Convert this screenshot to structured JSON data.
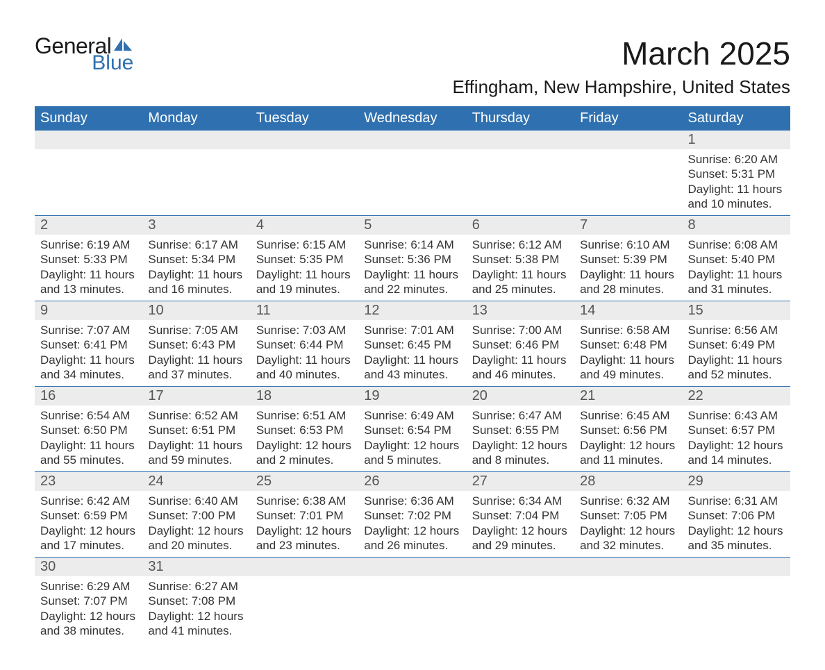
{
  "logo": {
    "general": "General",
    "blue": "Blue",
    "sail_color": "#2f71b0"
  },
  "title": "March 2025",
  "location": "Effingham, New Hampshire, United States",
  "colors": {
    "header_bg": "#2f71b0",
    "header_text": "#ffffff",
    "daynum_bg": "#ececec",
    "row_border": "#2f71b0",
    "text": "#333333"
  },
  "days_of_week": [
    "Sunday",
    "Monday",
    "Tuesday",
    "Wednesday",
    "Thursday",
    "Friday",
    "Saturday"
  ],
  "labels": {
    "sunrise": "Sunrise:",
    "sunset": "Sunset:",
    "daylight": "Daylight:"
  },
  "weeks": [
    [
      null,
      null,
      null,
      null,
      null,
      null,
      {
        "n": "1",
        "sunrise": "6:20 AM",
        "sunset": "5:31 PM",
        "daylight": "11 hours and 10 minutes."
      }
    ],
    [
      {
        "n": "2",
        "sunrise": "6:19 AM",
        "sunset": "5:33 PM",
        "daylight": "11 hours and 13 minutes."
      },
      {
        "n": "3",
        "sunrise": "6:17 AM",
        "sunset": "5:34 PM",
        "daylight": "11 hours and 16 minutes."
      },
      {
        "n": "4",
        "sunrise": "6:15 AM",
        "sunset": "5:35 PM",
        "daylight": "11 hours and 19 minutes."
      },
      {
        "n": "5",
        "sunrise": "6:14 AM",
        "sunset": "5:36 PM",
        "daylight": "11 hours and 22 minutes."
      },
      {
        "n": "6",
        "sunrise": "6:12 AM",
        "sunset": "5:38 PM",
        "daylight": "11 hours and 25 minutes."
      },
      {
        "n": "7",
        "sunrise": "6:10 AM",
        "sunset": "5:39 PM",
        "daylight": "11 hours and 28 minutes."
      },
      {
        "n": "8",
        "sunrise": "6:08 AM",
        "sunset": "5:40 PM",
        "daylight": "11 hours and 31 minutes."
      }
    ],
    [
      {
        "n": "9",
        "sunrise": "7:07 AM",
        "sunset": "6:41 PM",
        "daylight": "11 hours and 34 minutes."
      },
      {
        "n": "10",
        "sunrise": "7:05 AM",
        "sunset": "6:43 PM",
        "daylight": "11 hours and 37 minutes."
      },
      {
        "n": "11",
        "sunrise": "7:03 AM",
        "sunset": "6:44 PM",
        "daylight": "11 hours and 40 minutes."
      },
      {
        "n": "12",
        "sunrise": "7:01 AM",
        "sunset": "6:45 PM",
        "daylight": "11 hours and 43 minutes."
      },
      {
        "n": "13",
        "sunrise": "7:00 AM",
        "sunset": "6:46 PM",
        "daylight": "11 hours and 46 minutes."
      },
      {
        "n": "14",
        "sunrise": "6:58 AM",
        "sunset": "6:48 PM",
        "daylight": "11 hours and 49 minutes."
      },
      {
        "n": "15",
        "sunrise": "6:56 AM",
        "sunset": "6:49 PM",
        "daylight": "11 hours and 52 minutes."
      }
    ],
    [
      {
        "n": "16",
        "sunrise": "6:54 AM",
        "sunset": "6:50 PM",
        "daylight": "11 hours and 55 minutes."
      },
      {
        "n": "17",
        "sunrise": "6:52 AM",
        "sunset": "6:51 PM",
        "daylight": "11 hours and 59 minutes."
      },
      {
        "n": "18",
        "sunrise": "6:51 AM",
        "sunset": "6:53 PM",
        "daylight": "12 hours and 2 minutes."
      },
      {
        "n": "19",
        "sunrise": "6:49 AM",
        "sunset": "6:54 PM",
        "daylight": "12 hours and 5 minutes."
      },
      {
        "n": "20",
        "sunrise": "6:47 AM",
        "sunset": "6:55 PM",
        "daylight": "12 hours and 8 minutes."
      },
      {
        "n": "21",
        "sunrise": "6:45 AM",
        "sunset": "6:56 PM",
        "daylight": "12 hours and 11 minutes."
      },
      {
        "n": "22",
        "sunrise": "6:43 AM",
        "sunset": "6:57 PM",
        "daylight": "12 hours and 14 minutes."
      }
    ],
    [
      {
        "n": "23",
        "sunrise": "6:42 AM",
        "sunset": "6:59 PM",
        "daylight": "12 hours and 17 minutes."
      },
      {
        "n": "24",
        "sunrise": "6:40 AM",
        "sunset": "7:00 PM",
        "daylight": "12 hours and 20 minutes."
      },
      {
        "n": "25",
        "sunrise": "6:38 AM",
        "sunset": "7:01 PM",
        "daylight": "12 hours and 23 minutes."
      },
      {
        "n": "26",
        "sunrise": "6:36 AM",
        "sunset": "7:02 PM",
        "daylight": "12 hours and 26 minutes."
      },
      {
        "n": "27",
        "sunrise": "6:34 AM",
        "sunset": "7:04 PM",
        "daylight": "12 hours and 29 minutes."
      },
      {
        "n": "28",
        "sunrise": "6:32 AM",
        "sunset": "7:05 PM",
        "daylight": "12 hours and 32 minutes."
      },
      {
        "n": "29",
        "sunrise": "6:31 AM",
        "sunset": "7:06 PM",
        "daylight": "12 hours and 35 minutes."
      }
    ],
    [
      {
        "n": "30",
        "sunrise": "6:29 AM",
        "sunset": "7:07 PM",
        "daylight": "12 hours and 38 minutes."
      },
      {
        "n": "31",
        "sunrise": "6:27 AM",
        "sunset": "7:08 PM",
        "daylight": "12 hours and 41 minutes."
      },
      null,
      null,
      null,
      null,
      null
    ]
  ]
}
